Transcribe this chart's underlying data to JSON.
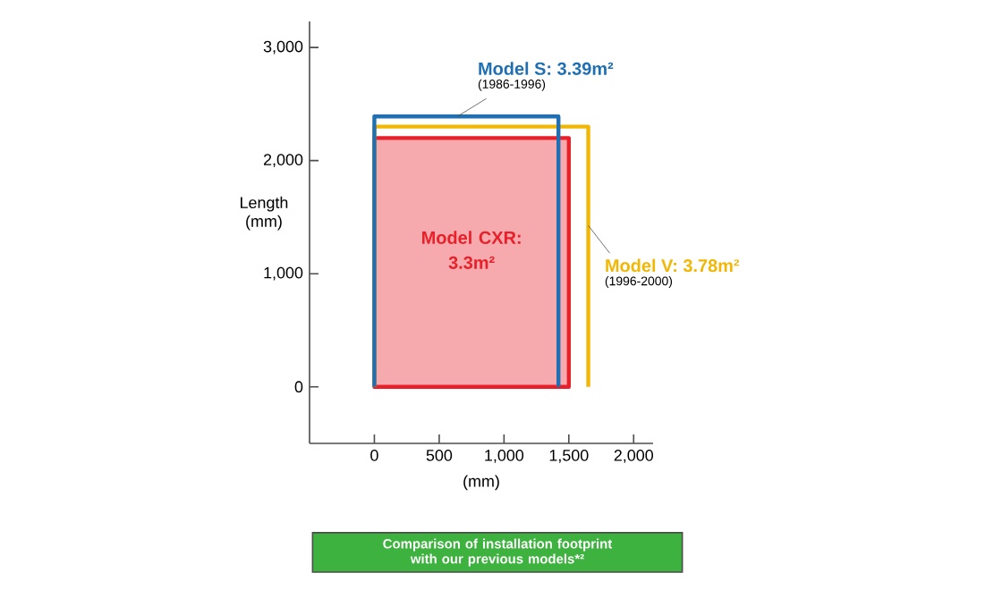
{
  "chart_data": {
    "type": "line",
    "ylabel": "Length (mm)",
    "xlabel": "(mm)",
    "xlim": [
      -500,
      2150
    ],
    "ylim": [
      -500,
      3230
    ],
    "xticks": [
      0,
      500,
      {
        "value": 1000,
        "label": "1,000"
      },
      {
        "value": 1500,
        "label": "1,500"
      },
      {
        "value": 2000,
        "label": "2,000"
      }
    ],
    "yticks": [
      0,
      {
        "value": 1000,
        "label": "1,000"
      },
      {
        "value": 2000,
        "label": "2,000"
      },
      {
        "value": 3000,
        "label": "3,000"
      }
    ],
    "series": [
      {
        "type": "area",
        "name": "Model CXR: 3.3m²",
        "color": "#e8202a",
        "x": [
          0,
          0,
          1500,
          1500
        ],
        "values": [
          0,
          2200,
          2200,
          0
        ]
      },
      {
        "name": "Model V: 3.78m²",
        "color": "#f2b705",
        "x": [
          0,
          0,
          1650,
          1650
        ],
        "values": [
          0,
          2300,
          2300,
          0
        ]
      },
      {
        "name": "Model S: 3.39m²",
        "color": "#1f6fb2",
        "x": [
          0,
          0,
          1420,
          1420
        ],
        "values": [
          0,
          2390,
          2390,
          0
        ]
      }
    ],
    "annotations": [
      "(1996-2000)",
      "(1986-1996)",
      "Comparison of installation footprint with our previous models*²"
    ]
  }
}
